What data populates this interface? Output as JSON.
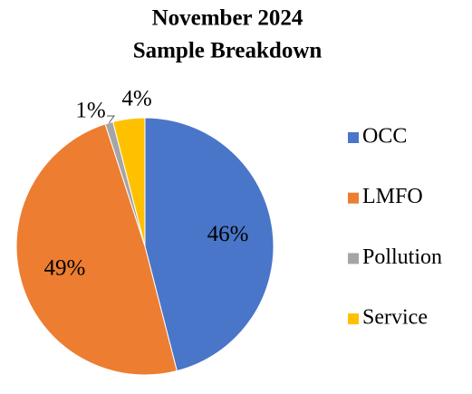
{
  "chart_data": {
    "type": "pie",
    "title": [
      "November 2024",
      "Sample Breakdown"
    ],
    "categories": [
      "OCC",
      "LMFO",
      "Pollution",
      "Service"
    ],
    "values": [
      46,
      49,
      1,
      4
    ],
    "value_labels": [
      "46%",
      "49%",
      "1%",
      "4%"
    ],
    "colors": [
      "#4a76c9",
      "#ed7d31",
      "#a5a5a5",
      "#ffc000"
    ],
    "legend": "right"
  }
}
